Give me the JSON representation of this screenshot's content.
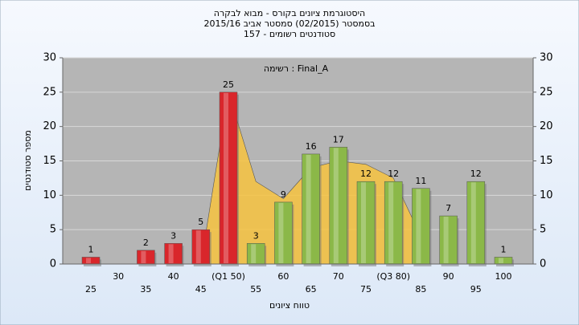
{
  "chart_data": {
    "type": "bar",
    "title": "היסטוגרמת ציונים בקורס - מבוא לבקרה",
    "subtitle": "בסמסטר  (02/2015)  סמסטר אביב 2015/16",
    "subtitle2": "סטודנטים רשומים - 157",
    "annotation": "רשימה : Final_A",
    "x_label": "טווח ציונים",
    "y_label": "מספר סטודנטים",
    "categories": [
      "25",
      "30",
      "35",
      "40",
      "45",
      "(Q1 50)",
      "55",
      "60",
      "65",
      "70",
      "75",
      "(Q3 80)",
      "85",
      "90",
      "95",
      "100"
    ],
    "values": [
      1,
      null,
      2,
      3,
      5,
      25,
      3,
      9,
      16,
      17,
      12,
      12,
      11,
      7,
      12,
      1
    ],
    "colors": [
      "#d9262b",
      "#d9262b",
      "#d9262b",
      "#d9262b",
      "#d9262b",
      "#d9262b",
      "#8bb848",
      "#8bb848",
      "#8bb848",
      "#8bb848",
      "#8bb848",
      "#8bb848",
      "#8bb848",
      "#8bb848",
      "#8bb848",
      "#8bb848"
    ],
    "area": {
      "color": "#f7c340",
      "values": [
        null,
        null,
        null,
        null,
        0,
        25,
        12,
        9.5,
        14,
        15,
        14.5,
        12.5,
        4,
        null,
        null,
        null
      ]
    },
    "ylim": [
      0,
      30
    ],
    "yticks": [
      0,
      5,
      10,
      15,
      20,
      25,
      30
    ],
    "y2lim": [
      0,
      30
    ],
    "y2ticks": [
      0,
      5,
      10,
      15,
      20,
      25,
      30
    ],
    "grid": true
  }
}
